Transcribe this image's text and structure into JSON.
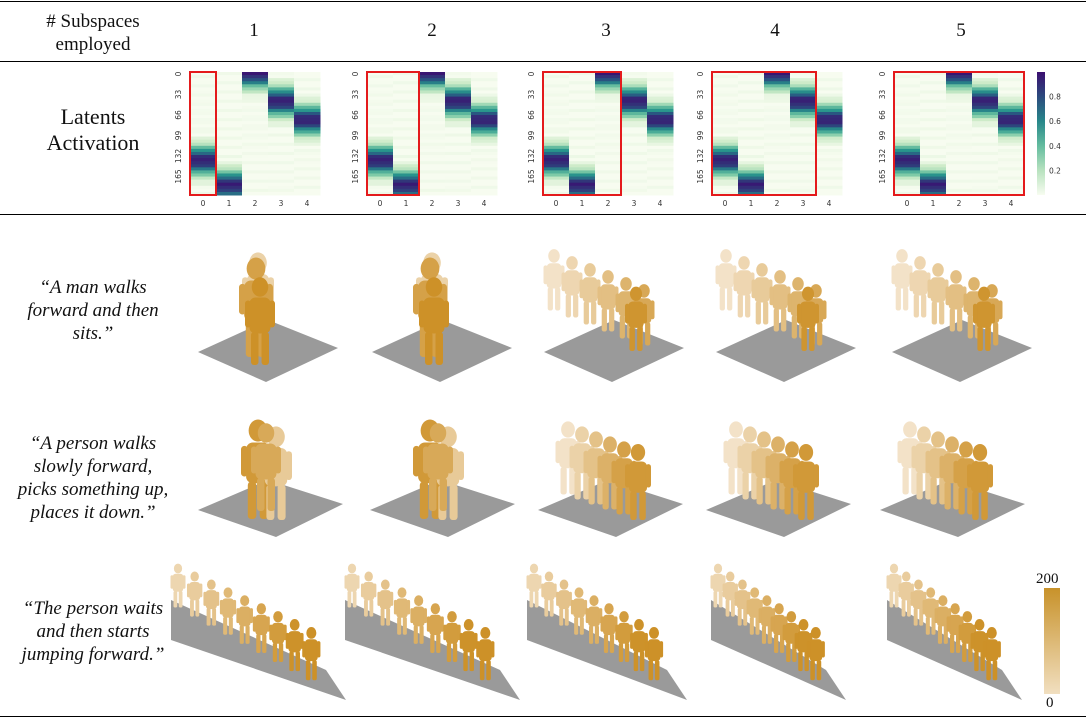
{
  "header": {
    "label_line1": "# Subspaces",
    "label_line2": "employed",
    "columns": [
      "1",
      "2",
      "3",
      "4",
      "5"
    ]
  },
  "latents": {
    "label_line1": "Latents",
    "label_line2": "Activation",
    "y_ticks": [
      "0",
      "33",
      "66",
      "99",
      "132",
      "165"
    ],
    "x_ticks": [
      "0",
      "1",
      "2",
      "3",
      "4"
    ],
    "colorbar_ticks": [
      "0.8",
      "0.6",
      "0.4",
      "0.2"
    ],
    "highlight_count": [
      1,
      2,
      3,
      4,
      5
    ],
    "colors": {
      "highlight": "#e41a1c",
      "low": "#f7fcf0",
      "high": "#3b0f70"
    }
  },
  "prompts": [
    {
      "line1": "“A man walks",
      "line2": "forward and then",
      "line3": "sits.”",
      "line4": ""
    },
    {
      "line1": "“A person walks",
      "line2": "slowly forward,",
      "line3": "picks something up,",
      "line4": "places it down.”"
    },
    {
      "line1": "“The person waits",
      "line2": "and then starts",
      "line3": "jumping forward.”",
      "line4": ""
    }
  ],
  "motion_colorbar": {
    "max": "200",
    "min": "0",
    "color_high": "#c8922a",
    "color_low": "#f1dfc0"
  }
}
